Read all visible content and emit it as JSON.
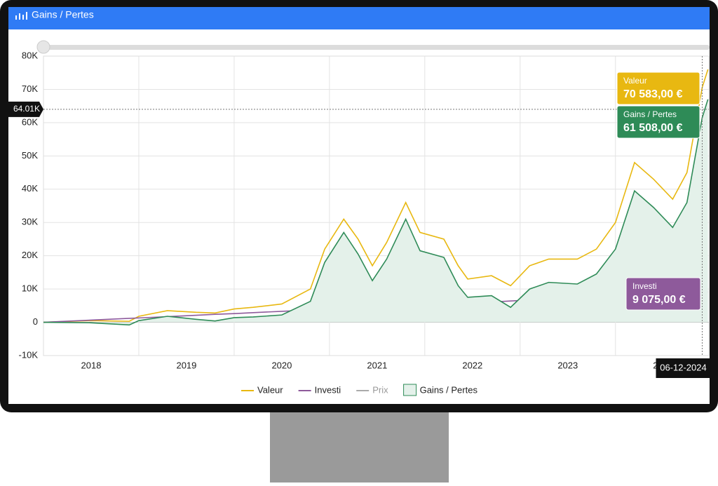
{
  "header": {
    "title": "Gains / Pertes"
  },
  "chart_data": {
    "type": "line",
    "x": [
      2018.0,
      2018.5,
      2018.9,
      2019.0,
      2019.3,
      2019.6,
      2019.8,
      2020.0,
      2020.2,
      2020.5,
      2020.8,
      2020.95,
      2021.15,
      2021.3,
      2021.45,
      2021.6,
      2021.8,
      2021.95,
      2022.2,
      2022.35,
      2022.45,
      2022.7,
      2022.9,
      2023.1,
      2023.3,
      2023.6,
      2023.8,
      2024.0,
      2024.2,
      2024.4,
      2024.6,
      2024.75,
      2024.91,
      2024.97
    ],
    "series": [
      {
        "name": "Valeur",
        "color": "#e8b811",
        "values": [
          0,
          500,
          300,
          1800,
          3500,
          3000,
          2800,
          4000,
          4500,
          5500,
          10000,
          22000,
          31000,
          25000,
          17000,
          24000,
          36000,
          27000,
          25000,
          17000,
          13000,
          14000,
          11000,
          17000,
          19000,
          19000,
          22000,
          30000,
          48000,
          43000,
          37000,
          45000,
          70583,
          76000
        ]
      },
      {
        "name": "Investi",
        "color": "#8e5a9b",
        "values": [
          0,
          650,
          1180,
          1300,
          1700,
          2100,
          2400,
          2600,
          2900,
          3300,
          3700,
          3900,
          4200,
          4400,
          4600,
          4800,
          5000,
          5200,
          5500,
          5700,
          5800,
          6100,
          6400,
          6700,
          7000,
          7400,
          7600,
          7900,
          8100,
          8400,
          8700,
          8900,
          9075,
          9100
        ]
      },
      {
        "name": "Prix",
        "color": "#aaaaaa",
        "hidden": true,
        "values": [
          null,
          null,
          null,
          null,
          null,
          null,
          null,
          null,
          null,
          null,
          null,
          null,
          null,
          null,
          null,
          null,
          null,
          null,
          null,
          null,
          null,
          null,
          null,
          null,
          null,
          null,
          null,
          null,
          null,
          null,
          null,
          null,
          null,
          null
        ]
      },
      {
        "name": "Gains / Pertes",
        "color": "#2e8b57",
        "fill": "#e4f1ea",
        "area": true,
        "values": [
          0,
          -150,
          -800,
          500,
          1800,
          900,
          400,
          1400,
          1600,
          2200,
          6300,
          18000,
          27000,
          20500,
          12500,
          19000,
          31000,
          21500,
          19500,
          11000,
          7500,
          8000,
          4500,
          10000,
          12000,
          11500,
          14500,
          22000,
          39500,
          34500,
          28500,
          36000,
          61508,
          67000
        ]
      }
    ],
    "xlim": [
      2018.0,
      2024.98
    ],
    "xticks": [
      {
        "value": 2018.5,
        "label": "2018"
      },
      {
        "value": 2019.5,
        "label": "2019"
      },
      {
        "value": 2020.5,
        "label": "2020"
      },
      {
        "value": 2021.5,
        "label": "2021"
      },
      {
        "value": 2022.5,
        "label": "2022"
      },
      {
        "value": 2023.5,
        "label": "2023"
      },
      {
        "value": 2024.5,
        "label": "2024"
      }
    ],
    "xgrid": [
      2019,
      2020,
      2021,
      2022,
      2023,
      2024
    ],
    "ylim": [
      -10000,
      80000
    ],
    "yticks": [
      {
        "value": -10000,
        "label": "-10K"
      },
      {
        "value": 0,
        "label": "0"
      },
      {
        "value": 10000,
        "label": "10K"
      },
      {
        "value": 20000,
        "label": "20K"
      },
      {
        "value": 30000,
        "label": "30K"
      },
      {
        "value": 40000,
        "label": "40K"
      },
      {
        "value": 50000,
        "label": "50K"
      },
      {
        "value": 60000,
        "label": "60K"
      },
      {
        "value": 70000,
        "label": "70K"
      },
      {
        "value": 80000,
        "label": "80K"
      }
    ],
    "grid": true,
    "crosshair": {
      "y": {
        "value": 64010,
        "label": "64.01K"
      },
      "x": {
        "value": 2024.91,
        "label": "06-12-2024"
      }
    },
    "tooltips": [
      {
        "label": "Valeur",
        "value": 70583,
        "value_label": "70 583,00 €",
        "color": "#e8b811"
      },
      {
        "label": "Gains / Pertes",
        "value": 61508,
        "value_label": "61 508,00 €",
        "color": "#2e8b57"
      },
      {
        "label": "Investi",
        "value": 9075,
        "value_label": "9 075,00 €",
        "color": "#8e5a9b"
      }
    ]
  }
}
